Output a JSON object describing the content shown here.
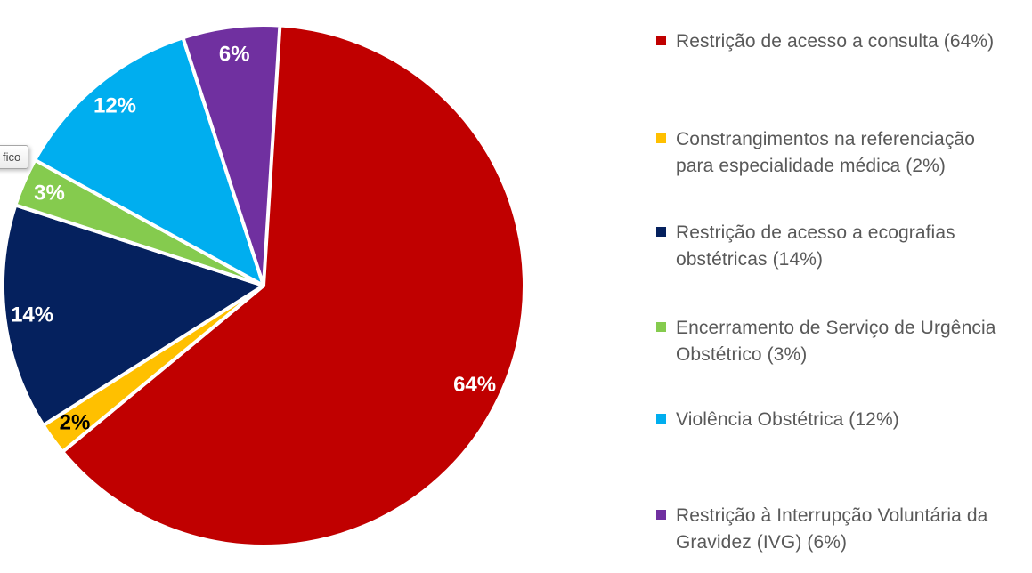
{
  "chart_data": {
    "type": "pie",
    "title": "",
    "legend_position": "right",
    "start_angle_deg": 0,
    "direction": "clockwise",
    "grid": false,
    "categories": [
      "Restrição de acesso a consulta",
      "Constrangimentos na referenciação para especialidade médica",
      "Restrição de acesso a ecografias obstétricas",
      "Encerramento de Serviço de Urgência Obstétrico",
      "Violência Obstétrica",
      "Restrição à Interrupção Voluntária da Gravidez (IVG)"
    ],
    "values": [
      64,
      2,
      14,
      3,
      12,
      6
    ],
    "slices": [
      {
        "name": "Restrição de acesso a consulta",
        "value_pct": 64,
        "color": "#C00000",
        "data_label": "64%",
        "data_label_color": "#FFFFFF",
        "legend_lines": [
          "Restrição de acesso a consulta (64%)"
        ]
      },
      {
        "name": "Constrangimentos na referenciação para especialidade médica",
        "value_pct": 2,
        "color": "#FFC000",
        "data_label": "2%",
        "data_label_color": "#000000",
        "legend_lines": [
          "Constrangimentos na referenciação",
          "para especialidade médica (2%)"
        ]
      },
      {
        "name": "Restrição de acesso a ecografias obstétricas",
        "value_pct": 14,
        "color": "#05215E",
        "data_label": "14%",
        "data_label_color": "#FFFFFF",
        "legend_lines": [
          "Restrição de acesso a ecografias",
          "obstétricas (14%)"
        ]
      },
      {
        "name": "Encerramento de Serviço de Urgência Obstétrico",
        "value_pct": 3,
        "color": "#85CB4E",
        "data_label": "3%",
        "data_label_color": "#FFFFFF",
        "legend_lines": [
          "Encerramento de Serviço de Urgência",
          "Obstétrico (3%)"
        ]
      },
      {
        "name": "Violência Obstétrica",
        "value_pct": 12,
        "color": "#00AEEF",
        "data_label": "12%",
        "data_label_color": "#FFFFFF",
        "legend_lines": [
          "Violência Obstétrica (12%)"
        ]
      },
      {
        "name": "Restrição à Interrupção Voluntária da Gravidez (IVG)",
        "value_pct": 6,
        "color": "#7030A0",
        "data_label": "6%",
        "data_label_color": "#FFFFFF",
        "legend_lines": [
          "Restrição à Interrupção Voluntária da",
          "Gravidez (IVG) (6%)"
        ]
      }
    ]
  },
  "tooltip": {
    "text": "fico"
  }
}
